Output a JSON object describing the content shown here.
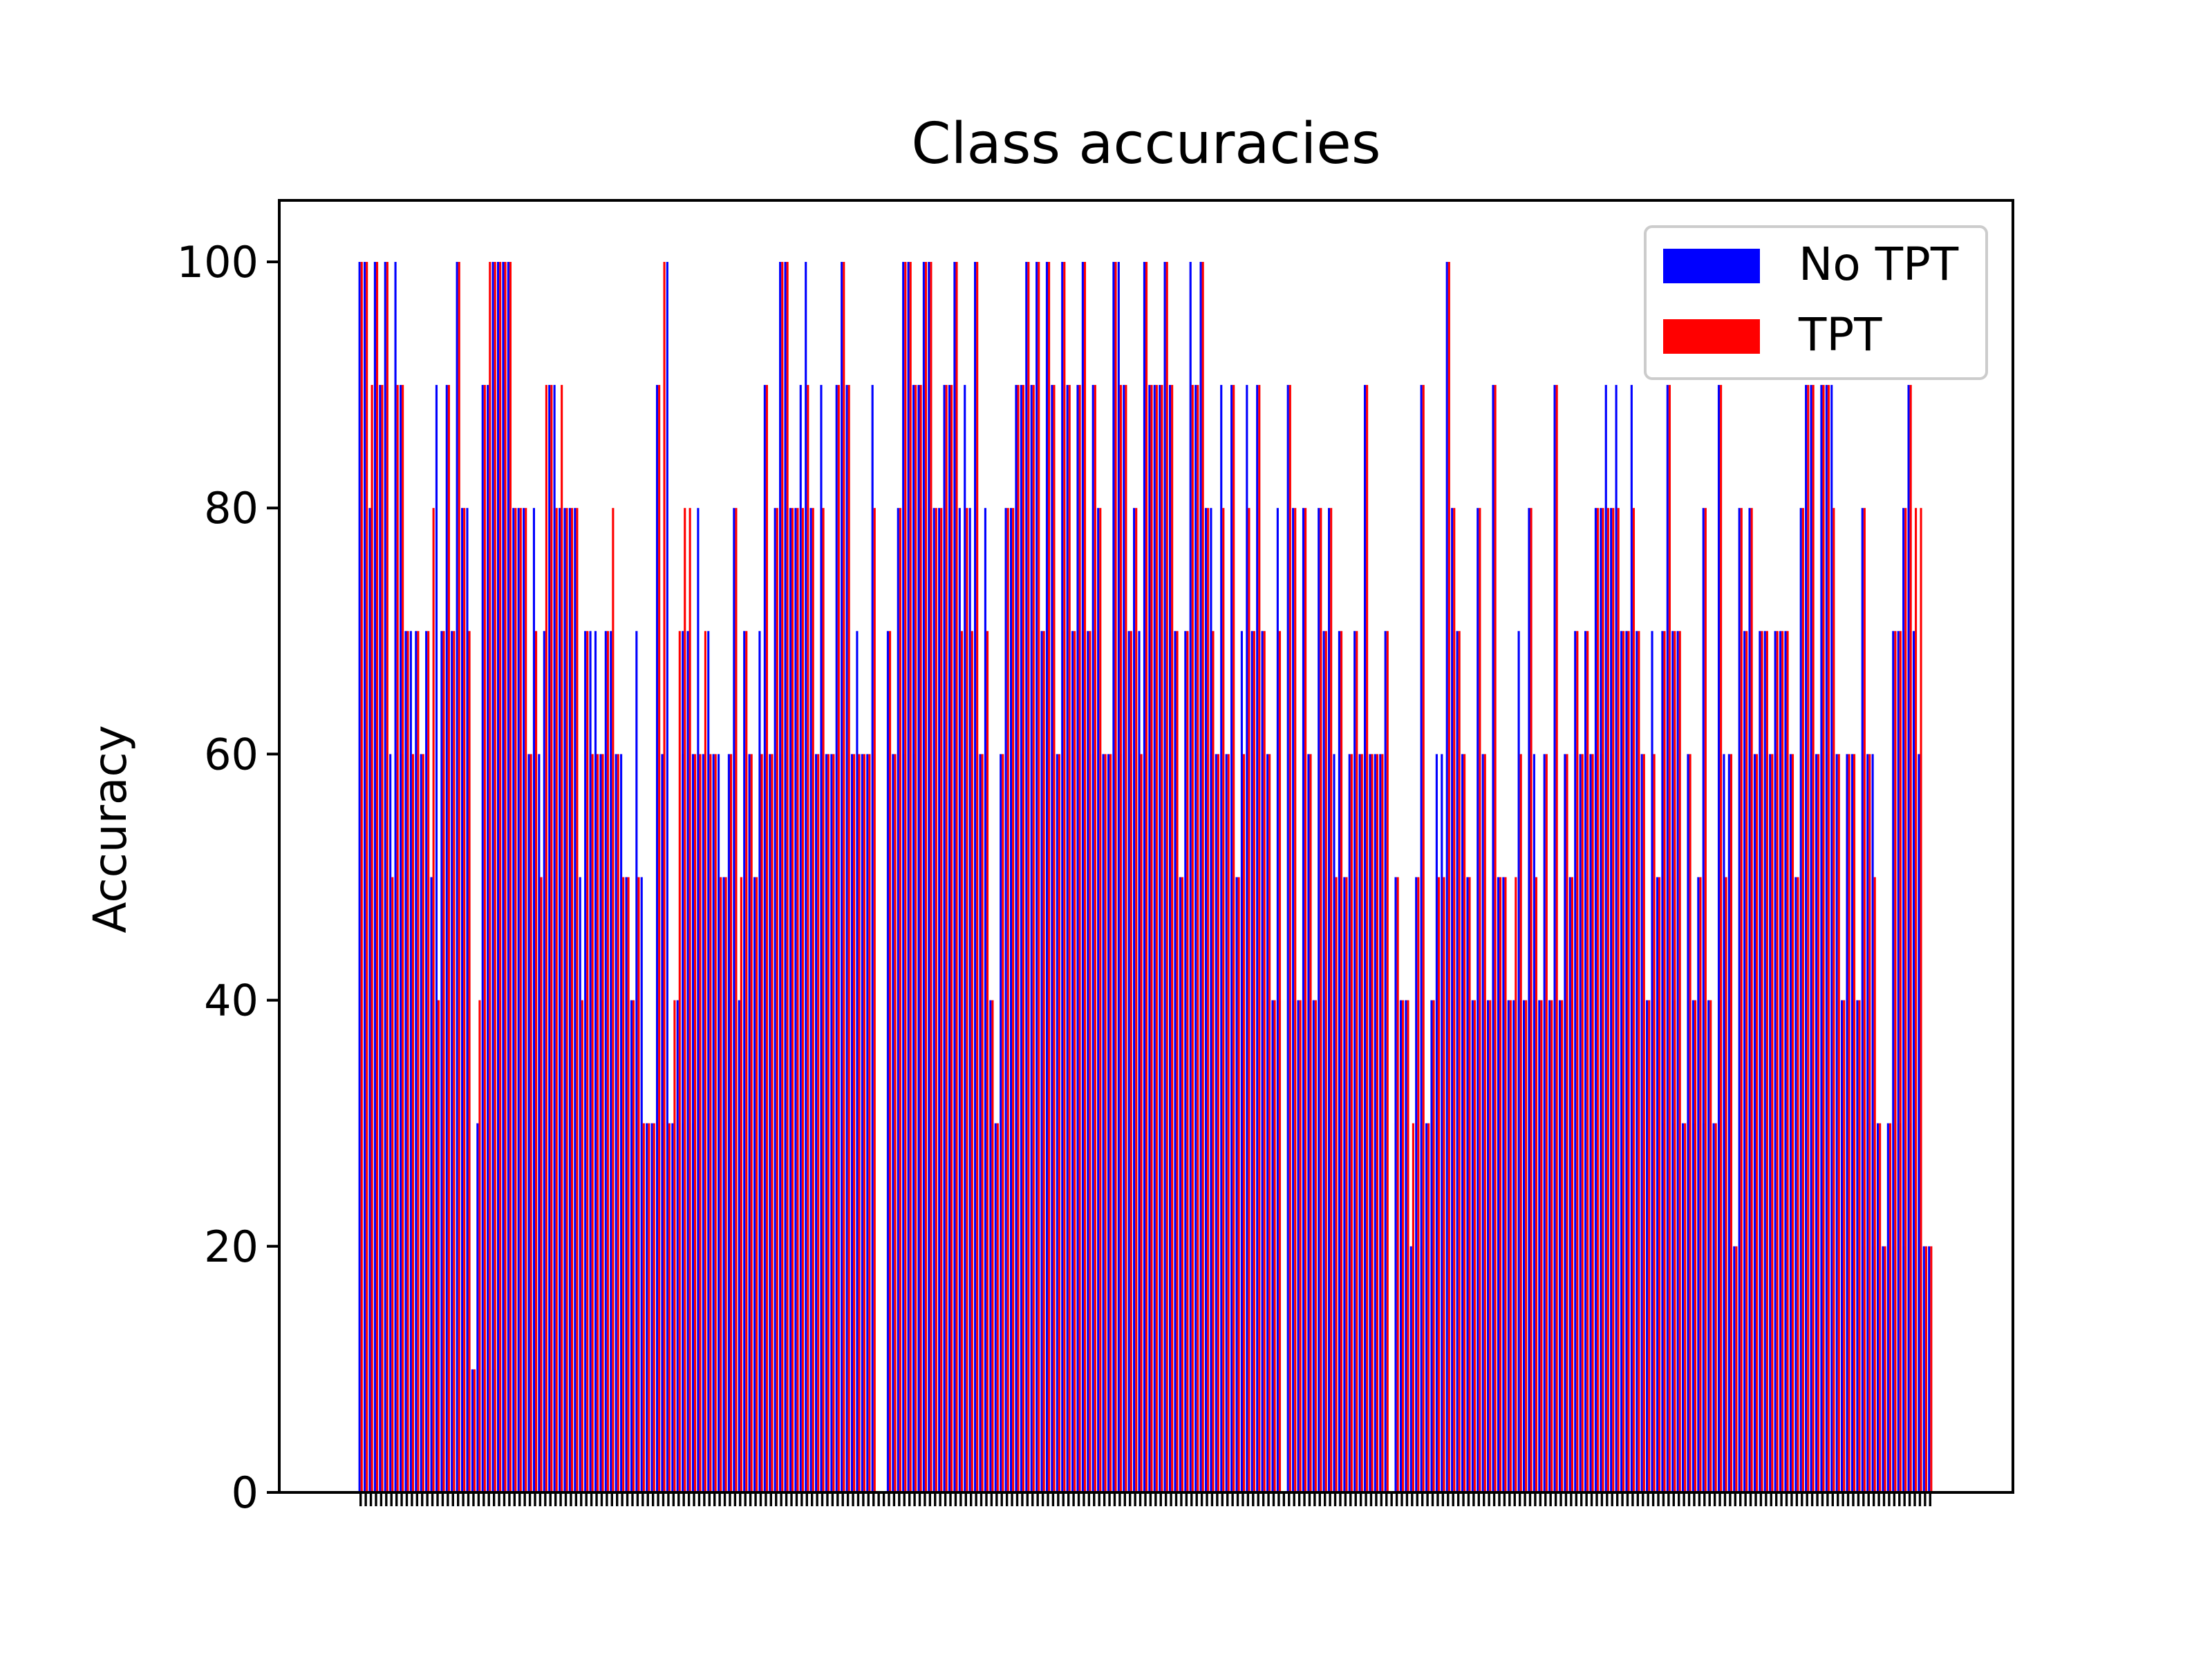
{
  "chart_data": {
    "type": "bar",
    "title": "Class accuracies",
    "xlabel": "",
    "ylabel": "Accuracy",
    "ylim": [
      0,
      105
    ],
    "yticks": [
      0,
      20,
      40,
      60,
      80,
      100
    ],
    "grid": false,
    "legend_position": "upper right",
    "series": [
      {
        "name": "No TPT",
        "color": "#0000ff",
        "values": [
          100,
          100,
          80,
          100,
          90,
          100,
          60,
          100,
          90,
          70,
          70,
          70,
          60,
          70,
          50,
          90,
          70,
          90,
          70,
          100,
          80,
          80,
          10,
          30,
          90,
          90,
          100,
          100,
          100,
          100,
          80,
          80,
          80,
          60,
          80,
          60,
          70,
          90,
          90,
          80,
          80,
          80,
          80,
          50,
          70,
          70,
          70,
          60,
          70,
          70,
          60,
          60,
          50,
          40,
          70,
          50,
          30,
          30,
          90,
          60,
          100,
          30,
          40,
          70,
          70,
          60,
          80,
          60,
          70,
          60,
          60,
          50,
          60,
          80,
          40,
          70,
          60,
          50,
          70,
          90,
          60,
          80,
          100,
          100,
          80,
          80,
          90,
          100,
          80,
          60,
          90,
          60,
          60,
          90,
          100,
          90,
          60,
          70,
          60,
          60,
          90,
          0,
          0,
          70,
          60,
          80,
          100,
          100,
          90,
          90,
          100,
          100,
          80,
          80,
          90,
          90,
          100,
          80,
          90,
          80,
          100,
          60,
          80,
          40,
          30,
          60,
          80,
          80,
          90,
          90,
          100,
          90,
          100,
          70,
          100,
          90,
          60,
          100,
          90,
          70,
          90,
          100,
          70,
          90,
          80,
          60,
          60,
          100,
          100,
          90,
          70,
          80,
          70,
          100,
          90,
          90,
          90,
          100,
          90,
          70,
          50,
          70,
          100,
          90,
          100,
          80,
          80,
          60,
          90,
          60,
          90,
          50,
          70,
          90,
          70,
          90,
          70,
          60,
          40,
          80,
          0,
          90,
          80,
          40,
          80,
          60,
          40,
          80,
          70,
          80,
          60,
          70,
          50,
          60,
          70,
          60,
          90,
          60,
          60,
          60,
          70,
          0,
          50,
          40,
          40,
          20,
          50,
          90,
          30,
          40,
          60,
          60,
          100,
          80,
          70,
          60,
          50,
          40,
          80,
          60,
          40,
          90,
          50,
          50,
          40,
          40,
          70,
          40,
          80,
          60,
          40,
          60,
          40,
          90,
          40,
          60,
          50,
          70,
          60,
          70,
          60,
          80,
          80,
          90,
          80,
          90,
          70,
          70,
          90,
          70,
          60,
          40,
          70,
          50,
          70,
          90,
          70,
          70,
          30,
          60,
          40,
          50,
          80,
          40,
          30,
          90,
          60,
          60,
          20,
          80,
          70,
          80,
          60,
          70,
          70,
          60,
          70,
          70,
          70,
          60,
          50,
          80,
          90,
          90,
          60,
          90,
          90,
          90,
          60,
          40,
          60,
          60,
          40,
          80,
          60,
          60,
          30,
          20,
          30,
          70,
          70,
          80,
          90,
          70,
          60,
          20,
          20
        ]
      },
      {
        "name": "TPT",
        "color": "#ff0000",
        "values": [
          100,
          100,
          90,
          100,
          90,
          100,
          50,
          90,
          90,
          70,
          60,
          70,
          60,
          70,
          80,
          40,
          70,
          90,
          70,
          100,
          80,
          70,
          10,
          40,
          90,
          100,
          100,
          100,
          100,
          100,
          80,
          80,
          80,
          60,
          70,
          50,
          90,
          90,
          80,
          90,
          80,
          80,
          80,
          40,
          70,
          60,
          60,
          60,
          70,
          80,
          60,
          50,
          50,
          40,
          50,
          30,
          30,
          30,
          90,
          100,
          30,
          40,
          70,
          80,
          80,
          60,
          60,
          70,
          60,
          60,
          50,
          50,
          60,
          80,
          50,
          70,
          60,
          50,
          60,
          90,
          60,
          80,
          100,
          100,
          80,
          80,
          80,
          90,
          80,
          60,
          80,
          60,
          60,
          90,
          100,
          90,
          60,
          60,
          60,
          60,
          80,
          0,
          0,
          70,
          60,
          80,
          100,
          100,
          90,
          90,
          100,
          100,
          80,
          80,
          90,
          90,
          100,
          70,
          80,
          70,
          100,
          60,
          70,
          40,
          30,
          60,
          80,
          80,
          90,
          90,
          100,
          90,
          100,
          70,
          100,
          90,
          60,
          100,
          90,
          70,
          90,
          100,
          70,
          90,
          80,
          60,
          60,
          100,
          90,
          90,
          70,
          80,
          60,
          100,
          90,
          90,
          90,
          100,
          90,
          70,
          50,
          70,
          90,
          90,
          100,
          80,
          70,
          60,
          80,
          60,
          90,
          50,
          60,
          80,
          70,
          90,
          70,
          60,
          40,
          70,
          0,
          90,
          80,
          40,
          80,
          60,
          40,
          80,
          70,
          80,
          50,
          70,
          50,
          60,
          70,
          60,
          90,
          60,
          60,
          60,
          70,
          0,
          50,
          40,
          40,
          30,
          50,
          90,
          30,
          40,
          50,
          50,
          100,
          80,
          70,
          60,
          50,
          40,
          80,
          60,
          40,
          90,
          50,
          50,
          40,
          50,
          60,
          40,
          80,
          50,
          40,
          60,
          40,
          90,
          40,
          60,
          50,
          70,
          60,
          70,
          60,
          80,
          80,
          80,
          80,
          80,
          70,
          70,
          80,
          70,
          60,
          40,
          60,
          50,
          70,
          90,
          70,
          70,
          30,
          60,
          40,
          50,
          80,
          40,
          30,
          90,
          50,
          60,
          20,
          80,
          70,
          80,
          60,
          70,
          70,
          60,
          70,
          70,
          70,
          60,
          50,
          80,
          90,
          90,
          60,
          90,
          90,
          80,
          60,
          40,
          60,
          60,
          40,
          80,
          60,
          50,
          30,
          20,
          30,
          70,
          70,
          80,
          90,
          80,
          80,
          20,
          20
        ]
      }
    ]
  }
}
